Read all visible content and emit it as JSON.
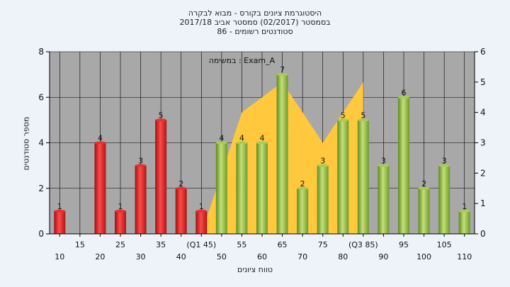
{
  "titles": {
    "line1": "היסטוגרמת ציונים בקורס - מבוא לבקרה",
    "line2": "בסמסטר  (02/2017)  סמסטר אביב 2017/18",
    "line3": "סטודנטים רשומים - 86"
  },
  "chart_data": {
    "type": "bar",
    "annotation": "במשימה : Exam_A",
    "xlabel": "טווח ציונים",
    "ylabel": "מספר סטודנטים",
    "categories": [
      10,
      15,
      20,
      25,
      30,
      35,
      40,
      45,
      50,
      55,
      60,
      65,
      70,
      75,
      80,
      85,
      90,
      95,
      100,
      105,
      110
    ],
    "x_tick_labels": [
      "10",
      "15",
      "20",
      "25",
      "30",
      "35",
      "40",
      "(Q1 45)",
      "50",
      "55",
      "60",
      "65",
      "70",
      "75",
      "80",
      "(Q3 85)",
      "90",
      "95",
      "100",
      "105",
      "110"
    ],
    "values": [
      1,
      0,
      4,
      1,
      3,
      5,
      2,
      1,
      4,
      4,
      4,
      7,
      2,
      3,
      5,
      5,
      3,
      6,
      2,
      3,
      1
    ],
    "data_labels": [
      "1",
      "",
      "4",
      "1",
      "3",
      "5",
      "2",
      "1",
      "4",
      "4",
      "4",
      "7",
      "2",
      "3",
      "5",
      "5",
      "3",
      "6",
      "2",
      "3",
      "1"
    ],
    "bar_colors": {
      "below_50": "#dd2222",
      "from_50": "#8db83b"
    },
    "left_axis": {
      "min": 0,
      "max": 8,
      "ticks": [
        0,
        2,
        4,
        6,
        8
      ]
    },
    "right_axis": {
      "min": 0,
      "max": 6,
      "ticks": [
        0,
        1,
        2,
        3,
        4,
        5,
        6
      ]
    },
    "area_series": {
      "axis": "right",
      "color": "#ffc83d",
      "x": [
        45,
        55,
        65,
        70,
        75,
        85
      ],
      "values": [
        0,
        4,
        5,
        4,
        3,
        5
      ]
    },
    "grid": true,
    "plot_background": "#a8a8a8"
  }
}
